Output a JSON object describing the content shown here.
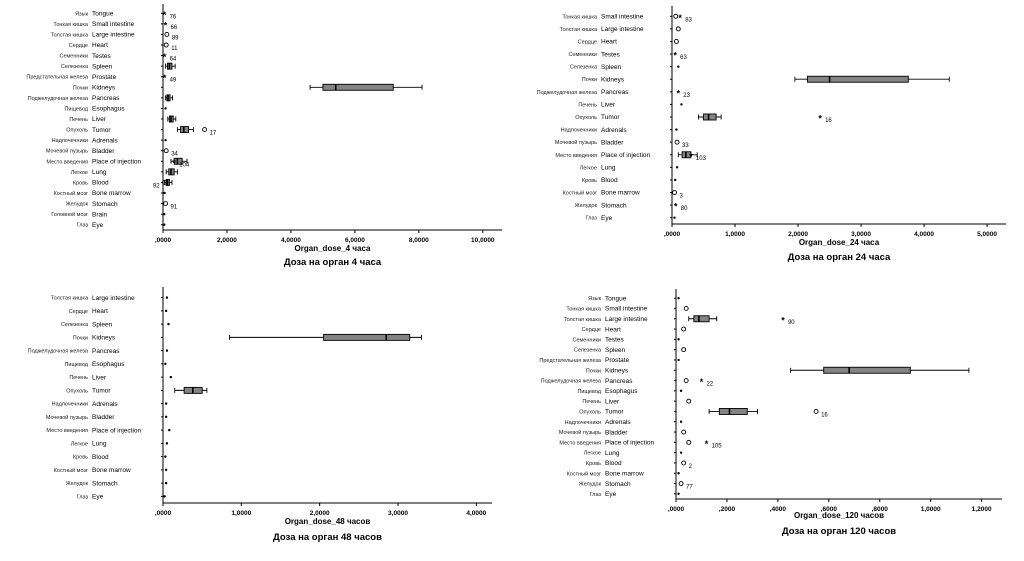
{
  "page": {
    "background": "#ffffff",
    "accent_color": "#000000",
    "box_fill": "#848484"
  },
  "chart_data": [
    {
      "type": "boxplot",
      "orientation": "horizontal",
      "xlabel": "Organ_dose_4 часа",
      "caption": "Доза на орган 4 часа",
      "xmax": 10.6,
      "ticks": [
        {
          "v": 0,
          "label": ",0000"
        },
        {
          "v": 2,
          "label": "2,0000"
        },
        {
          "v": 4,
          "label": "4,0000"
        },
        {
          "v": 6,
          "label": "6,0000"
        },
        {
          "v": 8,
          "label": "8,0000"
        },
        {
          "v": 10,
          "label": "10,0000"
        }
      ],
      "rows": [
        {
          "ru": "Язык",
          "en": "Tongue",
          "points": [
            {
              "v": 0.05,
              "sym": "*",
              "label": "76"
            }
          ]
        },
        {
          "ru": "Тонкая кишка",
          "en": "Small intestine",
          "points": [
            {
              "v": 0.08,
              "sym": "*",
              "label": "66"
            }
          ]
        },
        {
          "ru": "Толстая кишка",
          "en": "Large intestine",
          "points": [
            {
              "v": 0.12,
              "sym": "o",
              "label": "89"
            }
          ]
        },
        {
          "ru": "Сердце",
          "en": "Heart",
          "points": [
            {
              "v": 0.1,
              "sym": "o",
              "label": "11"
            }
          ]
        },
        {
          "ru": "Семенники",
          "en": "Testes",
          "points": [
            {
              "v": 0.05,
              "sym": "*",
              "label": "64"
            }
          ]
        },
        {
          "ru": "Селезенка",
          "en": "Spleen",
          "box": [
            0.08,
            0.14,
            0.2,
            0.28,
            0.38
          ]
        },
        {
          "ru": "Предстательная железа",
          "en": "Prostate",
          "points": [
            {
              "v": 0.05,
              "sym": "*",
              "label": "49"
            }
          ]
        },
        {
          "ru": "Почки",
          "en": "Kidneys",
          "box": [
            4.6,
            5.0,
            5.4,
            7.2,
            8.1
          ]
        },
        {
          "ru": "Поджелудочная железа",
          "en": "Pancreas",
          "box": [
            0.08,
            0.12,
            0.16,
            0.22,
            0.3
          ]
        },
        {
          "ru": "Пищевод",
          "en": "Esophagus",
          "points": [
            {
              "v": 0.08,
              "sym": "dot"
            }
          ]
        },
        {
          "ru": "Печень",
          "en": "Liver",
          "box": [
            0.15,
            0.2,
            0.25,
            0.32,
            0.4
          ]
        },
        {
          "ru": "Опухоль",
          "en": "Tumor",
          "box": [
            0.45,
            0.55,
            0.65,
            0.8,
            0.95
          ],
          "points": [
            {
              "v": 1.3,
              "sym": "o",
              "label": "17"
            }
          ]
        },
        {
          "ru": "Надпочечники",
          "en": "Adrenals",
          "points": [
            {
              "v": 0.08,
              "sym": "dot"
            }
          ]
        },
        {
          "ru": "Мочевой пузырь",
          "en": "Bladder",
          "points": [
            {
              "v": 0.1,
              "sym": "o",
              "label": "34"
            }
          ]
        },
        {
          "ru": "Место введения",
          "en": "Place of injection",
          "box": [
            0.25,
            0.35,
            0.45,
            0.6,
            0.75
          ],
          "points": [
            {
              "v": 0.35,
              "sym": "*",
              "label": "104"
            }
          ]
        },
        {
          "ru": "Легкое",
          "en": "Lung",
          "box": [
            0.1,
            0.18,
            0.25,
            0.35,
            0.45
          ]
        },
        {
          "ru": "Кровь",
          "en": "Blood",
          "box": [
            0.05,
            0.1,
            0.14,
            0.2,
            0.28
          ],
          "points": [
            {
              "v": 0.05,
              "sym": "o",
              "label": "92",
              "side": "left"
            }
          ]
        },
        {
          "ru": "Костный мозг",
          "en": "Bone marrow",
          "points": [
            {
              "v": 0.05,
              "sym": "dot"
            }
          ]
        },
        {
          "ru": "Желудок",
          "en": "Stomach",
          "points": [
            {
              "v": 0.08,
              "sym": "o",
              "label": "91"
            }
          ]
        },
        {
          "ru": "Головной мозг",
          "en": "Brain",
          "points": [
            {
              "v": 0.04,
              "sym": "dot"
            }
          ]
        },
        {
          "ru": "Глаз",
          "en": "Eye",
          "points": [
            {
              "v": 0.04,
              "sym": "dot"
            }
          ]
        }
      ]
    },
    {
      "type": "boxplot",
      "orientation": "horizontal",
      "xlabel": "Organ_dose_24 часа",
      "caption": "Доза на орган 24 часа",
      "xmax": 5.3,
      "ticks": [
        {
          "v": 0,
          "label": ",0000"
        },
        {
          "v": 1,
          "label": "1,0000"
        },
        {
          "v": 2,
          "label": "2,0000"
        },
        {
          "v": 3,
          "label": "3,0000"
        },
        {
          "v": 4,
          "label": "4,0000"
        },
        {
          "v": 5,
          "label": "5,0000"
        }
      ],
      "rows": [
        {
          "ru": "Тонкая кишка",
          "en": "Small intestine",
          "points": [
            {
              "v": 0.06,
              "sym": "o"
            },
            {
              "v": 0.13,
              "sym": "*",
              "label": "83"
            }
          ]
        },
        {
          "ru": "Толстая кишка",
          "en": "Large intestine",
          "points": [
            {
              "v": 0.1,
              "sym": "o"
            }
          ]
        },
        {
          "ru": "Сердце",
          "en": "Heart",
          "points": [
            {
              "v": 0.07,
              "sym": "o"
            }
          ]
        },
        {
          "ru": "Семенники",
          "en": "Testes",
          "points": [
            {
              "v": 0.05,
              "sym": "*",
              "label": "63"
            }
          ]
        },
        {
          "ru": "Селезенка",
          "en": "Spleen",
          "points": [
            {
              "v": 0.1,
              "sym": "dot"
            }
          ]
        },
        {
          "ru": "Почки",
          "en": "Kidneys",
          "box": [
            1.95,
            2.15,
            2.5,
            3.75,
            4.4
          ]
        },
        {
          "ru": "Поджелудочная железа",
          "en": "Pancreas",
          "points": [
            {
              "v": 0.1,
              "sym": "*",
              "label": "23"
            }
          ]
        },
        {
          "ru": "Печень",
          "en": "Liver",
          "points": [
            {
              "v": 0.15,
              "sym": "dot"
            }
          ]
        },
        {
          "ru": "Опухоль",
          "en": "Tumor",
          "box": [
            0.42,
            0.5,
            0.58,
            0.7,
            0.78
          ],
          "points": [
            {
              "v": 2.35,
              "sym": "*",
              "label": "16"
            }
          ]
        },
        {
          "ru": "Надпочечники",
          "en": "Adrenals",
          "points": [
            {
              "v": 0.07,
              "sym": "dot"
            }
          ]
        },
        {
          "ru": "Мочевой пузырь",
          "en": "Bladder",
          "points": [
            {
              "v": 0.08,
              "sym": "o",
              "label": "33"
            }
          ]
        },
        {
          "ru": "Место введения",
          "en": "Place of injection",
          "box": [
            0.1,
            0.16,
            0.22,
            0.3,
            0.4
          ],
          "points": [
            {
              "v": 0.3,
              "sym": "*",
              "label": "103"
            }
          ]
        },
        {
          "ru": "Легкое",
          "en": "Lung",
          "points": [
            {
              "v": 0.08,
              "sym": "dot"
            }
          ]
        },
        {
          "ru": "Кровь",
          "en": "Blood",
          "points": [
            {
              "v": 0.05,
              "sym": "dot"
            }
          ]
        },
        {
          "ru": "Костный мозг",
          "en": "Bone marrow",
          "points": [
            {
              "v": 0.04,
              "sym": "o",
              "label": "3"
            }
          ]
        },
        {
          "ru": "Желудок",
          "en": "Stomach",
          "points": [
            {
              "v": 0.06,
              "sym": "*",
              "label": "80"
            }
          ]
        },
        {
          "ru": "Глаз",
          "en": "Eye",
          "points": [
            {
              "v": 0.04,
              "sym": "dot"
            }
          ]
        }
      ]
    },
    {
      "type": "boxplot",
      "orientation": "horizontal",
      "xlabel": "Organ_dose_48 часов",
      "caption": "Доза на орган 48 часов",
      "xmax": 4.2,
      "ticks": [
        {
          "v": 0,
          "label": ",0000"
        },
        {
          "v": 1,
          "label": "1,0000"
        },
        {
          "v": 2,
          "label": "2,0000"
        },
        {
          "v": 3,
          "label": "3,0000"
        },
        {
          "v": 4,
          "label": "4,0000"
        }
      ],
      "rows": [
        {
          "ru": "Толстая кишка",
          "en": "Large intestine",
          "points": [
            {
              "v": 0.05,
              "sym": "dot"
            }
          ]
        },
        {
          "ru": "Сердце",
          "en": "Heart",
          "points": [
            {
              "v": 0.04,
              "sym": "dot"
            }
          ]
        },
        {
          "ru": "Селезенка",
          "en": "Spleen",
          "points": [
            {
              "v": 0.07,
              "sym": "dot"
            }
          ]
        },
        {
          "ru": "Почки",
          "en": "Kidneys",
          "box": [
            0.85,
            2.05,
            2.85,
            3.15,
            3.3
          ]
        },
        {
          "ru": "Поджелудочная железа",
          "en": "Pancreas",
          "points": [
            {
              "v": 0.05,
              "sym": "dot"
            }
          ]
        },
        {
          "ru": "Пищевод",
          "en": "Esophagus",
          "points": [
            {
              "v": 0.03,
              "sym": "dot"
            }
          ]
        },
        {
          "ru": "Печень",
          "en": "Liver",
          "points": [
            {
              "v": 0.1,
              "sym": "dot"
            }
          ]
        },
        {
          "ru": "Опухоль",
          "en": "Tumor",
          "box": [
            0.15,
            0.27,
            0.38,
            0.5,
            0.56
          ]
        },
        {
          "ru": "Надпочечники",
          "en": "Adrenals",
          "points": [
            {
              "v": 0.04,
              "sym": "dot"
            }
          ]
        },
        {
          "ru": "Мочевой пузырь",
          "en": "Bladder",
          "points": [
            {
              "v": 0.04,
              "sym": "dot"
            }
          ]
        },
        {
          "ru": "Место введения",
          "en": "Place of injection",
          "points": [
            {
              "v": 0.08,
              "sym": "dot"
            }
          ]
        },
        {
          "ru": "Легкое",
          "en": "Lung",
          "points": [
            {
              "v": 0.05,
              "sym": "dot"
            }
          ]
        },
        {
          "ru": "Кровь",
          "en": "Blood",
          "points": [
            {
              "v": 0.03,
              "sym": "dot"
            }
          ]
        },
        {
          "ru": "Костный мозг",
          "en": "Bone marrow",
          "points": [
            {
              "v": 0.04,
              "sym": "dot"
            }
          ]
        },
        {
          "ru": "Желудок",
          "en": "Stomach",
          "points": [
            {
              "v": 0.04,
              "sym": "dot"
            }
          ]
        },
        {
          "ru": "Глаз",
          "en": "Eye",
          "points": [
            {
              "v": 0.02,
              "sym": "dot"
            }
          ]
        }
      ]
    },
    {
      "type": "boxplot",
      "orientation": "horizontal",
      "xlabel": "Organ_dose_120 часов",
      "caption": "Доза на орган 120 часов",
      "xmax": 1.28,
      "ticks": [
        {
          "v": 0,
          "label": ",0000"
        },
        {
          "v": 0.2,
          "label": ",2000"
        },
        {
          "v": 0.4,
          "label": ",4000"
        },
        {
          "v": 0.6,
          "label": ",6000"
        },
        {
          "v": 0.8,
          "label": ",8000"
        },
        {
          "v": 1.0,
          "label": "1,0000"
        },
        {
          "v": 1.2,
          "label": "1,2000"
        }
      ],
      "rows": [
        {
          "ru": "Язык",
          "en": "Tongue",
          "points": [
            {
              "v": 0.01,
              "sym": "dot"
            }
          ]
        },
        {
          "ru": "Тонкая кишка",
          "en": "Small intestine",
          "points": [
            {
              "v": 0.04,
              "sym": "o"
            }
          ]
        },
        {
          "ru": "Толстая кишка",
          "en": "Large intestine",
          "box": [
            0.05,
            0.07,
            0.09,
            0.13,
            0.16
          ],
          "points": [
            {
              "v": 0.42,
              "sym": "*",
              "label": "90"
            }
          ]
        },
        {
          "ru": "Сердце",
          "en": "Heart",
          "points": [
            {
              "v": 0.03,
              "sym": "o"
            }
          ]
        },
        {
          "ru": "Семенники",
          "en": "Testes",
          "points": [
            {
              "v": 0.01,
              "sym": "dot"
            }
          ]
        },
        {
          "ru": "Селезенка",
          "en": "Spleen",
          "points": [
            {
              "v": 0.03,
              "sym": "o"
            }
          ]
        },
        {
          "ru": "Предстательная железа",
          "en": "Prostate",
          "points": [
            {
              "v": 0.01,
              "sym": "dot"
            }
          ]
        },
        {
          "ru": "Почки",
          "en": "Kidneys",
          "box": [
            0.45,
            0.58,
            0.68,
            0.92,
            1.15
          ]
        },
        {
          "ru": "Поджелудочная железа",
          "en": "Pancreas",
          "points": [
            {
              "v": 0.04,
              "sym": "o"
            },
            {
              "v": 0.1,
              "sym": "*",
              "label": "22"
            }
          ]
        },
        {
          "ru": "Пищевод",
          "en": "Esophagus",
          "points": [
            {
              "v": 0.02,
              "sym": "dot"
            }
          ]
        },
        {
          "ru": "Печень",
          "en": "Liver",
          "points": [
            {
              "v": 0.05,
              "sym": "o"
            }
          ]
        },
        {
          "ru": "Опухоль",
          "en": "Tumor",
          "box": [
            0.13,
            0.17,
            0.21,
            0.28,
            0.32
          ],
          "points": [
            {
              "v": 0.55,
              "sym": "o",
              "label": "16"
            }
          ]
        },
        {
          "ru": "Надпочечники",
          "en": "Adrenals",
          "points": [
            {
              "v": 0.02,
              "sym": "dot"
            }
          ]
        },
        {
          "ru": "Мочевой пузырь",
          "en": "Bladder",
          "points": [
            {
              "v": 0.03,
              "sym": "o"
            }
          ]
        },
        {
          "ru": "Место введения",
          "en": "Place of injection",
          "points": [
            {
              "v": 0.05,
              "sym": "o"
            },
            {
              "v": 0.12,
              "sym": "*",
              "label": "105"
            }
          ]
        },
        {
          "ru": "Легкое",
          "en": "Lung",
          "points": [
            {
              "v": 0.02,
              "sym": "dot"
            }
          ]
        },
        {
          "ru": "Кровь",
          "en": "Blood",
          "points": [
            {
              "v": 0.03,
              "sym": "o",
              "label": "2"
            }
          ]
        },
        {
          "ru": "Костный мозг",
          "en": "Bone marrow",
          "points": [
            {
              "v": 0.01,
              "sym": "dot"
            }
          ]
        },
        {
          "ru": "Желудок",
          "en": "Stomach",
          "points": [
            {
              "v": 0.02,
              "sym": "o",
              "label": "77"
            }
          ]
        },
        {
          "ru": "Глаз",
          "en": "Eye",
          "points": [
            {
              "v": 0.01,
              "sym": "dot"
            }
          ]
        }
      ]
    }
  ]
}
